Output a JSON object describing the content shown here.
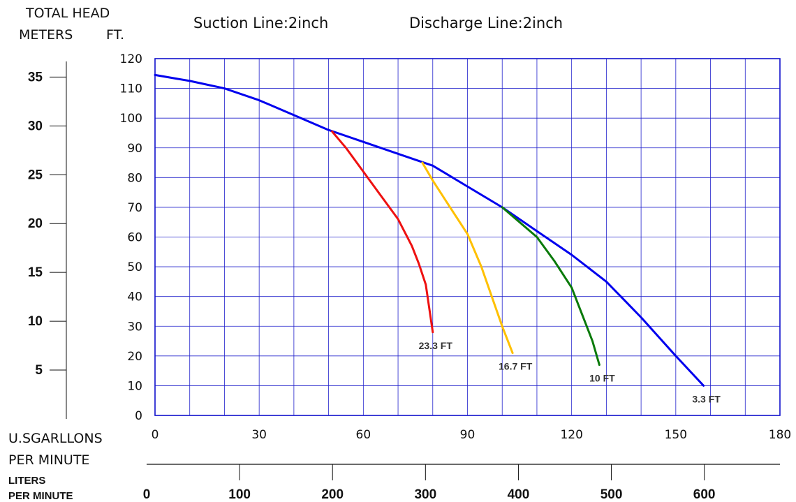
{
  "header": {
    "total_head": "TOTAL HEAD",
    "meters": "METERS",
    "ft": "FT.",
    "suction": "Suction Line:2inch",
    "discharge": "Discharge Line:2inch"
  },
  "x_units": {
    "gpm_line1": "U.SGARLLONS",
    "gpm_line2": "PER MINUTE",
    "lpm_line1": "LITERS",
    "lpm_line2": "PER MINUTE"
  },
  "chart_data": {
    "type": "line",
    "title": "",
    "xlabel": "U.SGARLLONS PER MINUTE",
    "ylabel": "TOTAL HEAD FT.",
    "xlim": [
      0,
      180
    ],
    "ylim": [
      0,
      120
    ],
    "grid": true,
    "x_ticks": [
      0,
      30,
      60,
      90,
      120,
      150,
      180
    ],
    "y_ticks_ft": [
      0,
      10,
      20,
      30,
      40,
      50,
      60,
      70,
      80,
      90,
      100,
      110,
      120
    ],
    "secondary_y_meters": {
      "ticks": [
        5,
        10,
        15,
        20,
        25,
        30,
        35
      ],
      "range": [
        0,
        36.6
      ]
    },
    "secondary_x_liters": {
      "ticks": [
        0,
        100,
        200,
        300,
        400,
        500,
        600
      ],
      "range": [
        0,
        681.4
      ]
    },
    "series": [
      {
        "name": "3.3 FT",
        "color": "#0000ee",
        "x": [
          0,
          10,
          20,
          30,
          40,
          50,
          60,
          70,
          80,
          90,
          100,
          110,
          120,
          130,
          140,
          150,
          158
        ],
        "y": [
          114.5,
          112.5,
          110,
          106,
          101,
          96,
          92,
          88,
          84,
          77,
          70,
          62,
          54,
          45,
          33,
          20,
          10
        ]
      },
      {
        "name": "23.3 FT",
        "color": "#ee1111",
        "x": [
          51,
          55,
          60,
          65,
          70,
          74,
          76,
          78,
          79,
          80
        ],
        "y": [
          95.5,
          90,
          82,
          74,
          66,
          57,
          51,
          44,
          36,
          28
        ]
      },
      {
        "name": "16.7 FT",
        "color": "#ffc000",
        "x": [
          77,
          80,
          85,
          90,
          94,
          97,
          100,
          103
        ],
        "y": [
          85,
          79,
          70,
          61,
          50,
          40,
          30,
          21
        ]
      },
      {
        "name": "10 FT",
        "color": "#0a7a0a",
        "x": [
          100,
          105,
          110,
          115,
          120,
          123,
          126,
          128
        ],
        "y": [
          70,
          65,
          60,
          52,
          43,
          34,
          25,
          17
        ]
      }
    ]
  }
}
